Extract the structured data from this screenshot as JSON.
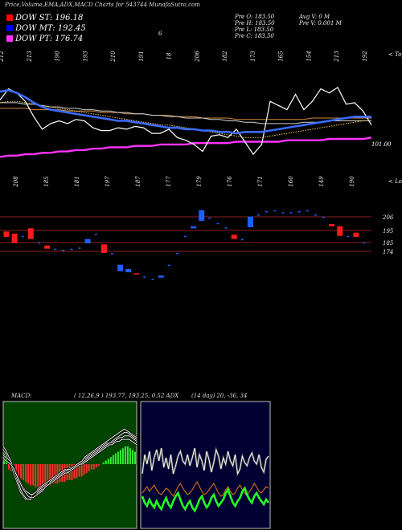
{
  "header": {
    "title": "Price,Volume,EMA,ADX,MACD Charts for 543744  MunafaSutra.com",
    "indicators": [
      {
        "label": "DOW ST: 196.18",
        "color": "#ff0000"
      },
      {
        "label": "DOW MT: 192.45",
        "color": "#0000ff"
      },
      {
        "label": "DOW PT: 176.74",
        "color": "#ff33ff"
      }
    ],
    "ohlc": {
      "open": "Pre  O: 183.50",
      "high": "Pre  H: 183.50",
      "low": "Pre  L: 183.50",
      "close": "Pre  C: 183.50",
      "avg_volume": "Avg V: 0  M",
      "pre_volume": "Pre  V: 0.001 M"
    },
    "stray_label": "6"
  },
  "colors": {
    "ema_short": "#3a6bff",
    "ema_mid": "#cfcfcf",
    "ema_long": "#d08a40",
    "ema_purple": "#ff33ff",
    "candle_up": "#1e5fff",
    "candle_down": "#ff1a1a",
    "macd_hist_pos": "#33ee33",
    "macd_hist_neg": "#ff3030",
    "adx_bg": "#000033",
    "macd_bg": "#004400"
  },
  "chart_data": [
    {
      "type": "line",
      "title": "Price EMA",
      "labels_top": [
        "212",
        "213",
        "190",
        "193",
        "210",
        "191",
        "18",
        "206",
        "182",
        "173",
        "165",
        "154",
        "213",
        "192"
      ],
      "labels_top_suffix": "< Tops",
      "labels_bottom": [
        "208",
        "185",
        "181",
        "197",
        "187",
        "177",
        "179",
        "176",
        "171",
        "160",
        "149",
        "190"
      ],
      "labels_bottom_suffix": "< Lows",
      "last_price_label": "101.00",
      "series": [
        {
          "role": "price",
          "values": [
            198,
            206,
            203,
            197,
            186,
            177,
            181,
            183,
            181,
            184,
            183,
            178,
            176,
            176,
            178,
            177,
            179,
            178,
            174,
            174,
            177,
            171,
            169,
            166,
            161,
            172,
            173,
            171,
            177,
            168,
            159,
            166,
            197,
            194,
            191,
            202,
            191,
            197,
            206,
            203,
            207,
            195,
            196,
            190,
            180
          ]
        },
        {
          "role": "ema-short",
          "values": [
            204,
            205,
            203,
            200,
            196,
            193,
            191,
            190,
            189,
            188,
            187,
            186,
            185,
            184,
            183,
            183,
            182,
            181,
            180,
            179,
            178,
            178,
            177,
            177,
            176,
            176,
            175,
            175,
            174,
            175,
            175,
            175,
            176,
            177,
            178,
            179,
            180,
            181,
            182,
            183,
            184,
            185,
            186,
            186,
            186
          ]
        },
        {
          "role": "ema-mid",
          "values": [
            196,
            196,
            196,
            195,
            195,
            194,
            193,
            193,
            192,
            192,
            191,
            191,
            190,
            190,
            189,
            189,
            188,
            188,
            187,
            187,
            186,
            186,
            185,
            185,
            185,
            184,
            184,
            183,
            183,
            182,
            182,
            181,
            181,
            181,
            181,
            181,
            182,
            182,
            182,
            183,
            183,
            183,
            183,
            183,
            183
          ]
        },
        {
          "role": "ema-long",
          "values": [
            192,
            192,
            192,
            192,
            191,
            191,
            191,
            191,
            190,
            190,
            190,
            190,
            189,
            189,
            189,
            188,
            188,
            188,
            187,
            187,
            187,
            186,
            186,
            186,
            185,
            185,
            185,
            185,
            184,
            184,
            184,
            184,
            184,
            184,
            184,
            184,
            184,
            185,
            185,
            185,
            185,
            185,
            185,
            185,
            185
          ]
        },
        {
          "role": "ema-dotted",
          "values": [
            196,
            197,
            197,
            196,
            195,
            194,
            193,
            192,
            191,
            190,
            189,
            188,
            187,
            186,
            185,
            184,
            183,
            182,
            181,
            180,
            180,
            179,
            178,
            177,
            176,
            175,
            174,
            173,
            172,
            171,
            171,
            171,
            172,
            173,
            174,
            175,
            176,
            177,
            178,
            179,
            180,
            181,
            182,
            183,
            183
          ]
        },
        {
          "role": "ema-purple",
          "values": [
            157,
            158,
            158,
            159,
            159,
            160,
            160,
            161,
            161,
            162,
            162,
            163,
            163,
            164,
            164,
            164,
            165,
            165,
            165,
            166,
            166,
            166,
            166,
            167,
            167,
            167,
            167,
            167,
            168,
            168,
            168,
            168,
            168,
            168,
            169,
            169,
            169,
            169,
            169,
            170,
            170,
            170,
            170,
            170,
            171
          ]
        }
      ]
    },
    {
      "type": "candlestick",
      "title": "Price bars",
      "levels": [
        "206",
        "195",
        "185",
        "174"
      ],
      "candles": [
        {
          "dir": "down",
          "o": 200,
          "c": 195
        },
        {
          "dir": "down",
          "o": 198,
          "c": 189
        },
        {
          "dir": "flat",
          "o": 196,
          "c": 196
        },
        {
          "dir": "down",
          "o": 203,
          "c": 193
        },
        {
          "dir": "flat",
          "o": 190,
          "c": 190
        },
        {
          "dir": "down",
          "o": 187,
          "c": 184
        },
        {
          "dir": "flat",
          "o": 184,
          "c": 184
        },
        {
          "dir": "flat",
          "o": 183,
          "c": 183
        },
        {
          "dir": "flat",
          "o": 184,
          "c": 184
        },
        {
          "dir": "flat",
          "o": 185,
          "c": 185
        },
        {
          "dir": "up",
          "o": 189,
          "c": 193
        },
        {
          "dir": "flat",
          "o": 198,
          "c": 198
        },
        {
          "dir": "down",
          "o": 188,
          "c": 180
        },
        {
          "dir": "flat",
          "o": 180,
          "c": 180
        },
        {
          "dir": "up",
          "o": 163,
          "c": 169
        },
        {
          "dir": "up",
          "o": 162,
          "c": 165
        },
        {
          "dir": "down",
          "o": 161,
          "c": 160
        },
        {
          "dir": "flat",
          "o": 158,
          "c": 158
        },
        {
          "dir": "flat",
          "o": 156,
          "c": 156
        },
        {
          "dir": "up",
          "o": 157,
          "c": 159
        },
        {
          "dir": "flat",
          "o": 169,
          "c": 169
        },
        {
          "dir": "flat",
          "o": 180,
          "c": 180
        },
        {
          "dir": "flat",
          "o": 196,
          "c": 196
        },
        {
          "dir": "up",
          "o": 203,
          "c": 205
        },
        {
          "dir": "up",
          "o": 210,
          "c": 220
        },
        {
          "dir": "flat",
          "o": 213,
          "c": 213
        },
        {
          "dir": "flat",
          "o": 208,
          "c": 208
        },
        {
          "dir": "flat",
          "o": 204,
          "c": 204
        },
        {
          "dir": "down",
          "o": 197,
          "c": 193
        },
        {
          "dir": "flat",
          "o": 193,
          "c": 193
        },
        {
          "dir": "up",
          "o": 204,
          "c": 214
        },
        {
          "dir": "flat",
          "o": 216,
          "c": 216
        },
        {
          "dir": "flat",
          "o": 219,
          "c": 219
        },
        {
          "dir": "flat",
          "o": 220,
          "c": 220
        },
        {
          "dir": "flat",
          "o": 218,
          "c": 218
        },
        {
          "dir": "flat",
          "o": 218,
          "c": 218
        },
        {
          "dir": "flat",
          "o": 219,
          "c": 219
        },
        {
          "dir": "flat",
          "o": 220,
          "c": 220
        },
        {
          "dir": "flat",
          "o": 216,
          "c": 216
        },
        {
          "dir": "flat",
          "o": 214,
          "c": 214
        },
        {
          "dir": "down",
          "o": 207,
          "c": 205
        },
        {
          "dir": "down",
          "o": 205,
          "c": 196
        },
        {
          "dir": "flat",
          "o": 196,
          "c": 196
        },
        {
          "dir": "down",
          "o": 199,
          "c": 195
        },
        {
          "dir": "flat",
          "o": 190,
          "c": 190
        }
      ]
    },
    {
      "type": "bar",
      "title": "MACD",
      "header_label": "MACD:",
      "header_values": "( 12,26,9 ) 193.77,  193.25, 0.52 ADX",
      "histogram": [
        6,
        5,
        -3,
        -4,
        -5,
        -6,
        -7,
        -8,
        -9,
        -10,
        -11,
        -12,
        -12,
        -13,
        -13,
        -13,
        -13,
        -12,
        -12,
        -12,
        -11,
        -11,
        -11,
        -10,
        -10,
        -10,
        -9,
        -9,
        -9,
        -8,
        -8,
        -7,
        -7,
        -6,
        -5,
        -4,
        -3,
        -3,
        -2,
        -1,
        0,
        1,
        2,
        3,
        4,
        5,
        6,
        7,
        8,
        9,
        10,
        10,
        9,
        8,
        7
      ],
      "lines": [
        {
          "role": "macd",
          "values": [
            8,
            6,
            3,
            0,
            -4,
            -8,
            -12,
            -16,
            -18,
            -20,
            -20,
            -19,
            -17,
            -16,
            -14,
            -13,
            -12,
            -11,
            -10,
            -9,
            -8,
            -7,
            -6,
            -5,
            -4,
            -3,
            -3,
            -2,
            -2,
            -1,
            0,
            1,
            2,
            3,
            4,
            5,
            6,
            7,
            8,
            9,
            10,
            11,
            12,
            12,
            13,
            14,
            15,
            16,
            17,
            18,
            18,
            17,
            16,
            15,
            14
          ]
        },
        {
          "role": "signal",
          "values": [
            5,
            4,
            3,
            1,
            -1,
            -4,
            -7,
            -10,
            -13,
            -15,
            -16,
            -17,
            -17,
            -16,
            -15,
            -14,
            -13,
            -12,
            -11,
            -10,
            -9,
            -8,
            -7,
            -6,
            -5,
            -4,
            -4,
            -3,
            -3,
            -2,
            -1,
            0,
            1,
            2,
            3,
            4,
            5,
            6,
            7,
            8,
            9,
            10,
            11,
            12,
            12,
            13,
            14,
            15,
            15,
            16,
            16,
            16,
            15,
            14,
            13
          ]
        },
        {
          "role": "macd-2",
          "values": [
            10,
            8,
            5,
            2,
            -2,
            -6,
            -10,
            -14,
            -17,
            -19,
            -20,
            -20,
            -19,
            -18,
            -16,
            -15,
            -14,
            -13,
            -12,
            -10,
            -9,
            -8,
            -7,
            -6,
            -5,
            -4,
            -3,
            -3,
            -2,
            -1,
            0,
            1,
            2,
            4,
            5,
            6,
            7,
            8,
            9,
            10,
            11,
            12,
            13,
            14,
            15,
            16,
            17,
            18,
            19,
            20,
            19,
            18,
            17,
            16,
            15
          ]
        },
        {
          "role": "macd-3",
          "values": [
            3,
            2,
            1,
            0,
            -2,
            -5,
            -8,
            -11,
            -14,
            -16,
            -18,
            -19,
            -19,
            -18,
            -17,
            -16,
            -15,
            -13,
            -12,
            -11,
            -10,
            -9,
            -8,
            -7,
            -6,
            -5,
            -5,
            -4,
            -3,
            -2,
            -1,
            0,
            0,
            1,
            2,
            3,
            4,
            5,
            6,
            7,
            8,
            9,
            10,
            11,
            11,
            12,
            13,
            13,
            14,
            14,
            14,
            14,
            13,
            12,
            11
          ]
        }
      ]
    },
    {
      "type": "line",
      "title": "ADX",
      "header_values": "(14 day) 20,  -36,  34",
      "series": [
        {
          "role": "adx-white",
          "values": [
            30,
            42,
            36,
            44,
            32,
            40,
            45,
            38,
            46,
            34,
            40,
            33,
            42,
            30,
            35,
            41,
            44,
            38,
            36,
            42,
            35,
            40,
            46,
            34,
            42,
            38,
            32,
            44,
            39,
            31,
            37,
            45,
            41,
            33,
            40,
            36,
            44,
            38,
            35,
            42,
            30,
            33,
            41,
            37,
            35,
            40,
            43,
            38,
            36,
            42,
            34,
            31,
            39,
            41
          ]
        },
        {
          "role": "adx-orange",
          "values": [
            18,
            20,
            22,
            19,
            21,
            23,
            20,
            18,
            17,
            19,
            21,
            20,
            18,
            16,
            19,
            22,
            24,
            21,
            19,
            17,
            18,
            20,
            23,
            25,
            22,
            19,
            17,
            18,
            20,
            22,
            24,
            21,
            18,
            16,
            17,
            20,
            22,
            19,
            17,
            18,
            21,
            23,
            20,
            18,
            16,
            19,
            21,
            24,
            22,
            19,
            18,
            20,
            22,
            21
          ]
        },
        {
          "role": "adx-green",
          "values": [
            16,
            12,
            10,
            14,
            11,
            9,
            13,
            10,
            8,
            12,
            15,
            11,
            9,
            13,
            16,
            18,
            14,
            10,
            8,
            11,
            13,
            9,
            7,
            10,
            14,
            16,
            12,
            9,
            11,
            15,
            17,
            13,
            10,
            12,
            14,
            18,
            20,
            16,
            12,
            10,
            13,
            15,
            19,
            21,
            17,
            14,
            12,
            16,
            18,
            15,
            13,
            11,
            14,
            12
          ]
        }
      ]
    }
  ]
}
